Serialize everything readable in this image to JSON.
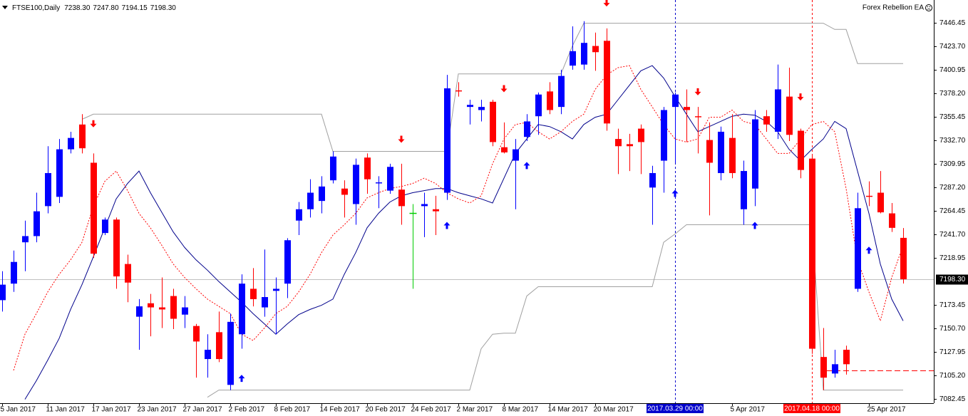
{
  "chart_data": {
    "type": "candlestick",
    "title": "FTSE100,Daily",
    "ohlc_labels": [
      "7238.30",
      "7247.80",
      "7194.15",
      "7198.30"
    ],
    "annotation": "Forex Rebellion EA",
    "categories": [
      "5 Jan 2017",
      null,
      null,
      null,
      "11 Jan 2017",
      null,
      null,
      null,
      "17 Jan 2017",
      null,
      null,
      null,
      "23 Jan 2017",
      null,
      null,
      null,
      "27 Jan 2017",
      null,
      null,
      null,
      "2 Feb 2017",
      null,
      null,
      null,
      "8 Feb 2017",
      null,
      null,
      null,
      "14 Feb 2017",
      null,
      null,
      null,
      "20 Feb 2017",
      null,
      null,
      null,
      "24 Feb 2017",
      null,
      null,
      null,
      "2 Mar 2017",
      null,
      null,
      null,
      "8 Mar 2017",
      null,
      null,
      null,
      "14 Mar 2017",
      null,
      null,
      null,
      "20 Mar 2017",
      null,
      null,
      null,
      null,
      null,
      null,
      null,
      null,
      null,
      null,
      null,
      "5 Apr 2017",
      null,
      null,
      null,
      null,
      null,
      null,
      null,
      null,
      null,
      null,
      null,
      "25 Apr 2017",
      null,
      null,
      null
    ],
    "open": [
      7178,
      7194,
      7234,
      7240,
      7269,
      7278,
      7324,
      7348,
      7311,
      7243,
      7256,
      7213,
      7162,
      7175,
      7171,
      7182,
      7164,
      7153,
      7121,
      7147,
      7096,
      7145,
      7189,
      7171,
      7187,
      7194,
      7255,
      7266,
      7274,
      7294,
      7286,
      7271,
      7316,
      7291,
      7284,
      7285,
      7262,
      7269,
      7266,
      7282,
      7381,
      7365,
      7362,
      7370,
      7326,
      7313,
      7336,
      7356,
      7380,
      7365,
      7405,
      7406,
      7424,
      7429,
      7334,
      7329,
      7344,
      7287,
      7313,
      7365,
      7365,
      7356,
      7333,
      7301,
      7335,
      7266,
      7286,
      7356,
      7341,
      7375,
      7342,
      7315,
      7123,
      7107,
      7130,
      7189,
      7279,
      7282,
      7262,
      7238.3
    ],
    "high": [
      7206,
      7226,
      7255,
      7282,
      7327,
      7334,
      7341,
      7358,
      7320,
      7258,
      7258,
      7222,
      7179,
      7184,
      7200,
      7189,
      7182,
      7155,
      7145,
      7167,
      7165,
      7203,
      7209,
      7227,
      7200,
      7238,
      7273,
      7295,
      7298,
      7322,
      7294,
      7315,
      7320,
      7298,
      7310,
      7310,
      7271,
      7282,
      7279,
      7396,
      7389,
      7372,
      7372,
      7372,
      7350,
      7334,
      7358,
      7379,
      7389,
      7401,
      7443,
      7448,
      7437,
      7441,
      7344,
      7339,
      7348,
      7308,
      7365,
      7379,
      7382,
      7365,
      7350,
      7346,
      7358,
      7313,
      7362,
      7362,
      7406,
      7403,
      7344,
      7318,
      7151,
      7130,
      7134,
      7282,
      7293,
      7303,
      7272,
      7247.8
    ],
    "low": [
      7167,
      7186,
      7206,
      7234,
      7262,
      7272,
      7320,
      7320,
      7219,
      7241,
      7189,
      7176,
      7130,
      7143,
      7151,
      7150,
      7151,
      7103,
      7103,
      7118,
      7091,
      7131,
      7172,
      7162,
      7145,
      7180,
      7241,
      7258,
      7262,
      7291,
      7258,
      7251,
      7281,
      7267,
      7281,
      7251,
      7189,
      7239,
      7241,
      7275,
      7375,
      7348,
      7351,
      7327,
      7320,
      7266,
      7332,
      7338,
      7358,
      7358,
      7401,
      7401,
      7400,
      7342,
      7300,
      7303,
      7300,
      7251,
      7282,
      7311,
      7331,
      7320,
      7260,
      7294,
      7296,
      7251,
      7269,
      7341,
      7334,
      7332,
      7296,
      7126,
      7091,
      7103,
      7106,
      7186,
      7269,
      7262,
      7244,
      7194.15
    ],
    "close": [
      7193,
      7215,
      7240,
      7264,
      7301,
      7324,
      7335,
      7325,
      7223,
      7256,
      7201,
      7195,
      7172,
      7171,
      7169,
      7160,
      7171,
      7138,
      7130,
      7121,
      7157,
      7194,
      7179,
      7181,
      7189,
      7236,
      7266,
      7282,
      7288,
      7317,
      7280,
      7309,
      7295,
      7292,
      7307,
      7269,
      7262,
      7271,
      7264,
      7383,
      7380,
      7367,
      7365,
      7331,
      7321,
      7324,
      7351,
      7377,
      7362,
      7395,
      7419,
      7427,
      7418,
      7349,
      7327,
      7327,
      7331,
      7301,
      7362,
      7377,
      7362,
      7355,
      7311,
      7341,
      7301,
      7303,
      7353,
      7348,
      7382,
      7338,
      7304,
      7131,
      7103,
      7116,
      7116,
      7267,
      7278,
      7263,
      7248,
      7198.3
    ],
    "up_color": "#0000ff",
    "down_color": "#ff0000",
    "doji_color": "#00cc00",
    "lines": [
      {
        "color": "#00008b",
        "style": "solid",
        "values": [
          null,
          null,
          7082,
          7100,
          7120,
          7141,
          7169,
          7193,
          7220,
          7248,
          7276,
          7291,
          7303,
          7282,
          7263,
          7244,
          7229,
          7217,
          7207,
          7196,
          7186,
          7176,
          7165,
          7155,
          7145,
          7155,
          7164,
          7169,
          7173,
          7179,
          7203,
          7224,
          7248,
          7262,
          7273,
          7279,
          7282,
          7284,
          7286,
          7286,
          7282,
          7279,
          7276,
          7272,
          7296,
          7320,
          7334,
          7348,
          7346,
          7341,
          7334,
          7348,
          7355,
          7358,
          7372,
          7386,
          7400,
          7405,
          7393,
          7375,
          7358,
          7341,
          7346,
          7351,
          7356,
          7358,
          7357,
          7351,
          7341,
          7324,
          7313,
          7324,
          7334,
          7351,
          7344,
          7303,
          7262,
          7213,
          7179,
          7158
        ]
      },
      {
        "color": "#ff0000",
        "style": "dotted",
        "values": [
          null,
          7110,
          7145,
          7165,
          7186,
          7203,
          7217,
          7234,
          7269,
          7293,
          7303,
          7284,
          7262,
          7248,
          7231,
          7213,
          7200,
          7189,
          7179,
          7172,
          7165,
          7145,
          7139,
          7151,
          7165,
          7172,
          7186,
          7203,
          7224,
          7241,
          7251,
          7262,
          7277,
          7282,
          7286,
          7288,
          7291,
          7296,
          7291,
          7282,
          7276,
          7272,
          7279,
          7310,
          7334,
          7348,
          7350,
          7341,
          7334,
          7341,
          7351,
          7358,
          7382,
          7396,
          7403,
          7405,
          7382,
          7365,
          7348,
          7334,
          7331,
          7334,
          7355,
          7355,
          7362,
          7351,
          7348,
          7334,
          7320,
          7320,
          7334,
          7348,
          7351,
          7341,
          7286,
          7217,
          7186,
          7158,
          7200,
          7231
        ]
      },
      {
        "color": "#a0a0a0",
        "style": "solid",
        "values": [
          null,
          null,
          null,
          null,
          null,
          null,
          null,
          7353,
          7358,
          7358,
          7358,
          7358,
          7358,
          7358,
          7358,
          7358,
          7358,
          7358,
          7358,
          7358,
          7358,
          7358,
          7358,
          7358,
          7358,
          7358,
          7358,
          7358,
          7358,
          7322,
          7322,
          7322,
          7322,
          7322,
          7322,
          7322,
          7322,
          7322,
          7322,
          7322,
          7397,
          7397,
          7397,
          7397,
          7397,
          7397,
          7397,
          7397,
          7397,
          7397,
          7424,
          7446,
          7446,
          7446,
          7446,
          7446,
          7446,
          7446,
          7446,
          7446,
          7446,
          7446,
          7446,
          7446,
          7446,
          7446,
          7446,
          7446,
          7446,
          7446,
          7446,
          7446,
          7446,
          7440,
          7440,
          7407,
          7407,
          7407,
          7407,
          7407
        ]
      },
      {
        "color": "#a0a0a0",
        "style": "solid",
        "values": [
          null,
          null,
          null,
          null,
          null,
          null,
          null,
          null,
          null,
          null,
          null,
          null,
          null,
          null,
          null,
          null,
          null,
          null,
          7084,
          7091,
          7091,
          7091,
          7091,
          7091,
          7091,
          7091,
          7091,
          7091,
          7091,
          7091,
          7091,
          7091,
          7091,
          7091,
          7091,
          7091,
          7091,
          7091,
          7091,
          7091,
          7091,
          7091,
          7131,
          7145,
          7146,
          7146,
          7182,
          7191,
          7191,
          7191,
          7191,
          7191,
          7191,
          7191,
          7191,
          7191,
          7191,
          7191,
          7234,
          7242,
          7251,
          7251,
          7251,
          7251,
          7251,
          7251,
          7251,
          7251,
          7251,
          7251,
          7251,
          7251,
          7091,
          7091,
          7091,
          7091,
          7091,
          7091,
          7091,
          7091
        ]
      }
    ],
    "sell_signals": [
      null,
      null,
      null,
      null,
      null,
      null,
      null,
      null,
      7348,
      null,
      null,
      null,
      null,
      null,
      null,
      null,
      null,
      null,
      null,
      null,
      null,
      null,
      null,
      null,
      null,
      null,
      null,
      null,
      null,
      null,
      null,
      null,
      null,
      null,
      null,
      7333,
      null,
      null,
      null,
      null,
      null,
      null,
      null,
      null,
      7382,
      null,
      null,
      null,
      null,
      null,
      null,
      null,
      null,
      7465,
      null,
      null,
      null,
      null,
      null,
      null,
      null,
      7379,
      null,
      null,
      null,
      null,
      null,
      null,
      null,
      null,
      7374,
      null,
      null,
      null,
      null,
      null,
      null,
      null,
      null,
      null
    ],
    "buy_signals": [
      null,
      null,
      null,
      null,
      null,
      null,
      null,
      null,
      null,
      null,
      null,
      null,
      null,
      null,
      null,
      null,
      null,
      null,
      null,
      null,
      null,
      7103,
      null,
      null,
      null,
      null,
      null,
      null,
      null,
      null,
      null,
      null,
      null,
      null,
      null,
      null,
      null,
      null,
      null,
      7251,
      null,
      null,
      null,
      null,
      null,
      null,
      7309,
      7372,
      null,
      null,
      null,
      null,
      null,
      null,
      null,
      null,
      null,
      null,
      null,
      7282,
      null,
      null,
      null,
      null,
      null,
      null,
      7251,
      null,
      null,
      null,
      null,
      null,
      null,
      null,
      null,
      null,
      7227,
      null,
      null,
      null
    ],
    "vlines": [
      {
        "index": 59,
        "label": "2017.03.29 00:00",
        "color": "#0000cc"
      },
      {
        "index": 71,
        "label": "2017.04.18 00:00",
        "color": "#ff0000"
      }
    ],
    "hline": {
      "value": 7110,
      "color": "#ff0000"
    },
    "current_price": {
      "value": 7198.3,
      "label": "7198.30"
    },
    "ylim": [
      7078.3,
      7468.5
    ],
    "yticks": [
      7446.45,
      {
        "value": 7423.7,
        "label": "7423.70"
      },
      7400.95,
      {
        "value": 7378.2,
        "label": "7378.20"
      },
      7355.45,
      {
        "value": 7332.7,
        "label": "7332.70"
      },
      7309.95,
      {
        "value": 7287.2,
        "label": "7287.20"
      },
      7264.45,
      {
        "value": 7241.7,
        "label": "7241.70"
      },
      7218.95,
      7173.45,
      {
        "value": 7150.7,
        "label": "7150.70"
      },
      7127.95,
      {
        "value": 7105.2,
        "label": "7105.20"
      },
      7082.45
    ]
  }
}
